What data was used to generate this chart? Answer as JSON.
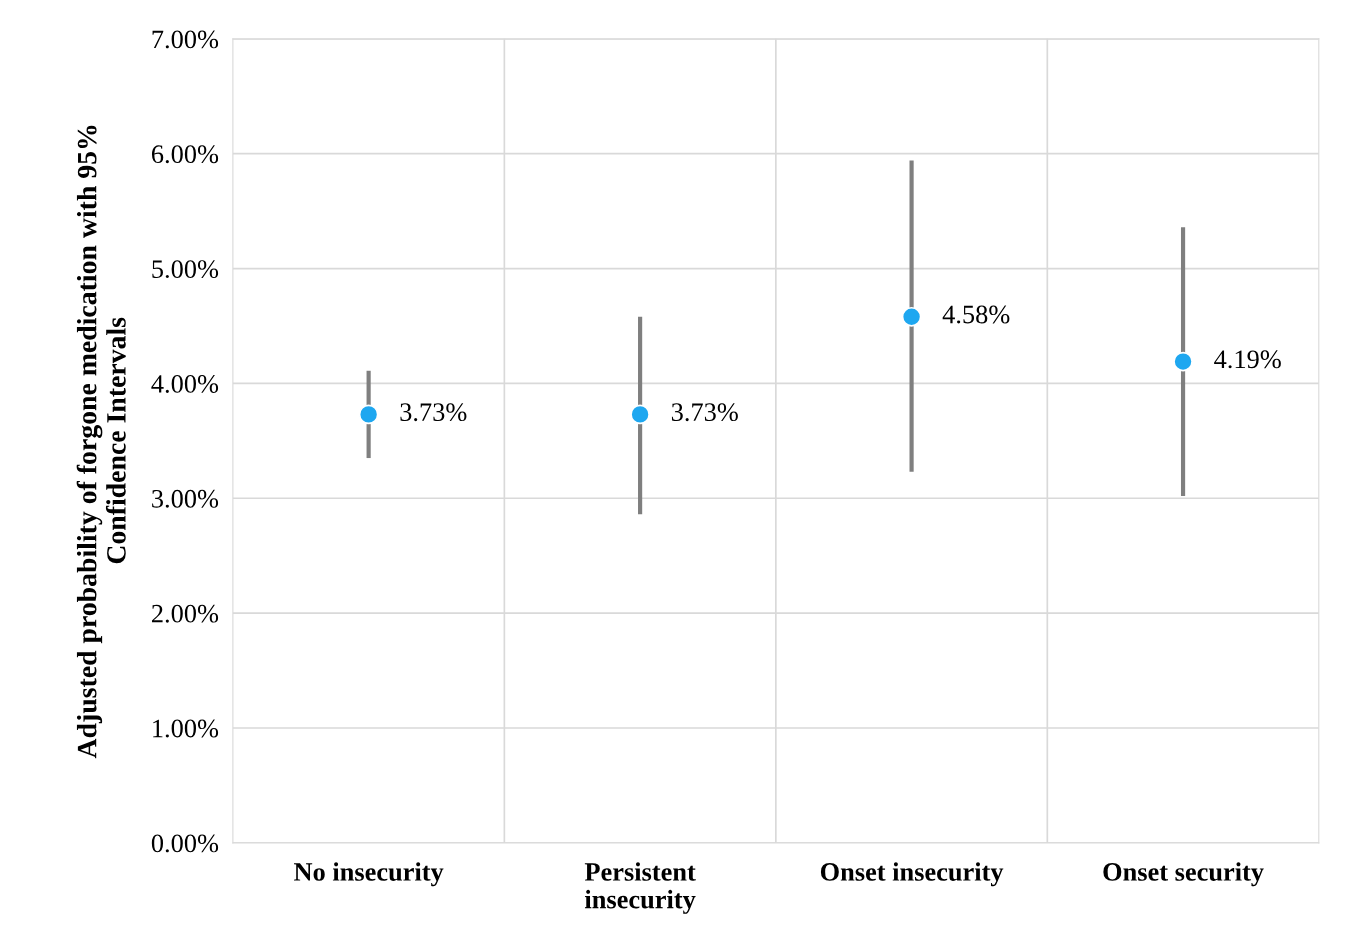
{
  "chart_data": {
    "type": "scatter",
    "ylabel": "Adjusted probability of forgone medication with 95%\nConfidence Intervals",
    "categories": [
      "No insecurity",
      "Persistent\ninsecurity",
      "Onset insecurity",
      "Onset security"
    ],
    "series": [
      {
        "color": "#1ea7f0",
        "values": [
          3.73,
          3.73,
          4.58,
          4.19
        ],
        "errors": [
          [
            3.35,
            4.11
          ],
          [
            2.86,
            4.58
          ],
          [
            3.23,
            5.94
          ],
          [
            3.02,
            5.36
          ]
        ],
        "value_labels": [
          "3.73%",
          "3.73%",
          "4.58%",
          "4.19%"
        ]
      }
    ],
    "ylim": [
      0,
      7
    ],
    "yticks": [
      {
        "value": 0,
        "label": "0.00%"
      },
      {
        "value": 1,
        "label": "1.00%"
      },
      {
        "value": 2,
        "label": "2.00%"
      },
      {
        "value": 3,
        "label": "3.00%"
      },
      {
        "value": 4,
        "label": "4.00%"
      },
      {
        "value": 5,
        "label": "5.00%"
      },
      {
        "value": 6,
        "label": "6.00%"
      },
      {
        "value": 7,
        "label": "7.00%"
      }
    ],
    "grid": true,
    "marker": "circle",
    "legend": false
  }
}
